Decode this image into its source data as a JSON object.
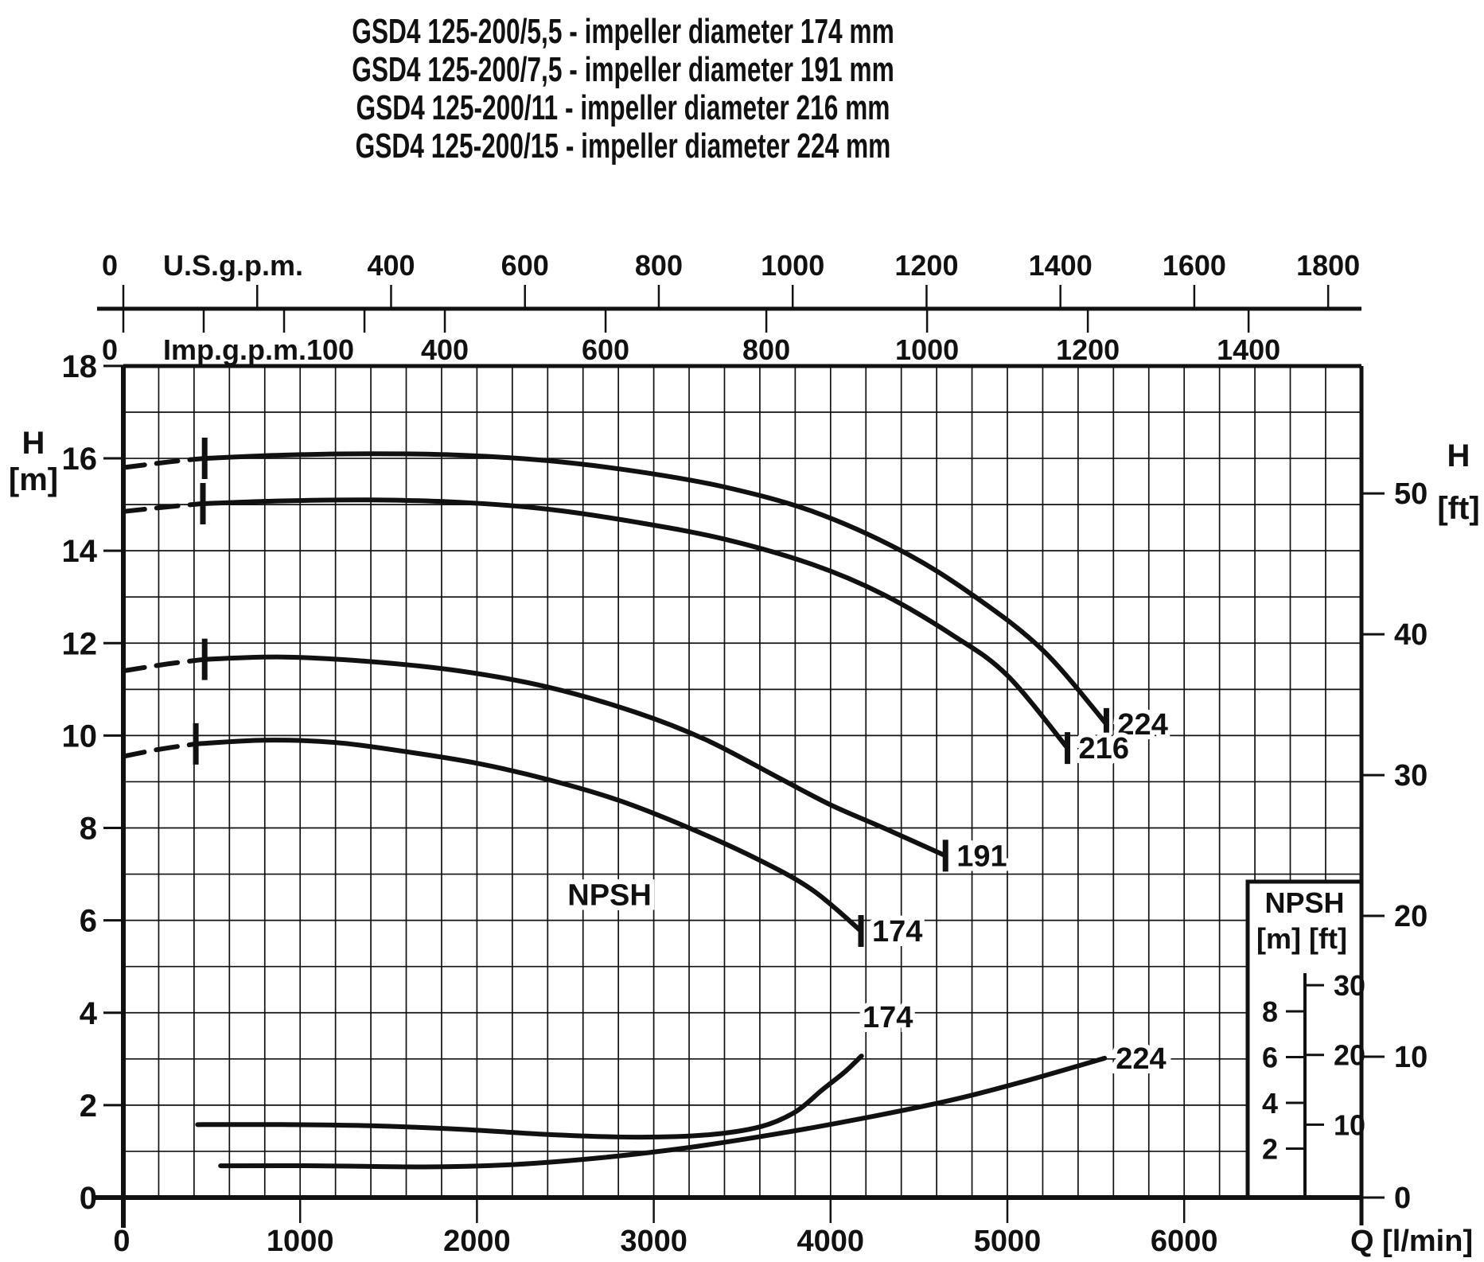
{
  "title": {
    "lines": [
      "GSD4 125-200/5,5 - impeller diameter 174 mm",
      "GSD4 125-200/7,5 - impeller diameter 191 mm",
      "GSD4 125-200/11 - impeller diameter 216 mm",
      "GSD4 125-200/15 - impeller diameter 224 mm"
    ]
  },
  "colors": {
    "ink": "#111111",
    "background": "#ffffff"
  },
  "chart_data": {
    "type": "line",
    "title": "GSD4 125-200 pump performance curves",
    "axes": {
      "bottom": {
        "label": "Q [l/min]",
        "tick_labels": [
          0,
          1000,
          2000,
          3000,
          4000,
          5000,
          6000
        ],
        "minor_step": 200,
        "range": [
          0,
          7000
        ]
      },
      "top_us": {
        "label": "U.S.g.p.m.",
        "zero_label": "0",
        "tick_labels": [
          400,
          600,
          800,
          1000,
          1200,
          1400,
          1600,
          1800
        ],
        "tick_marks": [
          0,
          200,
          400,
          600,
          800,
          1000,
          1200,
          1400,
          1600,
          1800
        ]
      },
      "top_imp": {
        "label": "Imp.g.p.m.100",
        "zero_label": "0",
        "tick_labels": [
          400,
          600,
          800,
          1000,
          1200,
          1400
        ],
        "tick_marks": [
          0,
          100,
          200,
          300,
          400,
          600,
          800,
          1000,
          1200,
          1400
        ]
      },
      "left": {
        "label_1": "H",
        "label_2": "[m]",
        "tick_labels": [
          0,
          2,
          4,
          6,
          8,
          10,
          12,
          14,
          16,
          18
        ],
        "minor_step": 1,
        "range": [
          0,
          18
        ]
      },
      "right": {
        "label_1": "H",
        "label_2": "[ft]",
        "tick_labels": [
          0,
          10,
          20,
          30,
          40,
          50
        ]
      }
    },
    "head_curves": [
      {
        "label": "224",
        "min_flow_q": 460,
        "points": [
          [
            0,
            15.8
          ],
          [
            250,
            15.92
          ],
          [
            460,
            16.0
          ],
          [
            900,
            16.07
          ],
          [
            1400,
            16.1
          ],
          [
            1900,
            16.07
          ],
          [
            2400,
            15.95
          ],
          [
            2900,
            15.72
          ],
          [
            3400,
            15.38
          ],
          [
            3900,
            14.85
          ],
          [
            4400,
            14.0
          ],
          [
            4800,
            13.05
          ],
          [
            5200,
            11.85
          ],
          [
            5560,
            10.25
          ]
        ]
      },
      {
        "label": "216",
        "min_flow_q": 450,
        "points": [
          [
            0,
            14.85
          ],
          [
            250,
            14.95
          ],
          [
            450,
            15.02
          ],
          [
            900,
            15.08
          ],
          [
            1400,
            15.1
          ],
          [
            1900,
            15.05
          ],
          [
            2400,
            14.9
          ],
          [
            2900,
            14.62
          ],
          [
            3400,
            14.25
          ],
          [
            3900,
            13.7
          ],
          [
            4300,
            13.05
          ],
          [
            4700,
            12.15
          ],
          [
            5000,
            11.3
          ],
          [
            5340,
            9.73
          ]
        ]
      },
      {
        "label": "191",
        "min_flow_q": 460,
        "points": [
          [
            0,
            11.4
          ],
          [
            250,
            11.55
          ],
          [
            460,
            11.65
          ],
          [
            900,
            11.7
          ],
          [
            1400,
            11.6
          ],
          [
            1900,
            11.4
          ],
          [
            2400,
            11.05
          ],
          [
            2900,
            10.5
          ],
          [
            3300,
            9.9
          ],
          [
            3700,
            9.1
          ],
          [
            4000,
            8.5
          ],
          [
            4300,
            8.0
          ],
          [
            4650,
            7.4
          ]
        ]
      },
      {
        "label": "174",
        "min_flow_q": 410,
        "points": [
          [
            0,
            9.55
          ],
          [
            200,
            9.7
          ],
          [
            410,
            9.82
          ],
          [
            800,
            9.9
          ],
          [
            1200,
            9.85
          ],
          [
            1600,
            9.65
          ],
          [
            2000,
            9.4
          ],
          [
            2400,
            9.05
          ],
          [
            2800,
            8.6
          ],
          [
            3200,
            8.0
          ],
          [
            3600,
            7.3
          ],
          [
            3900,
            6.65
          ],
          [
            4172,
            5.77
          ]
        ]
      }
    ],
    "npsh_curves": [
      {
        "label": "174",
        "label_pos": "above-end",
        "points": [
          [
            420,
            3.05
          ],
          [
            900,
            3.05
          ],
          [
            1400,
            3.0
          ],
          [
            1900,
            2.85
          ],
          [
            2400,
            2.62
          ],
          [
            2900,
            2.5
          ],
          [
            3300,
            2.6
          ],
          [
            3600,
            2.95
          ],
          [
            3800,
            3.6
          ],
          [
            3950,
            4.55
          ],
          [
            4080,
            5.35
          ],
          [
            4175,
            6.05
          ]
        ]
      },
      {
        "label": "224",
        "label_pos": "right",
        "points": [
          [
            550,
            1.25
          ],
          [
            1100,
            1.25
          ],
          [
            1700,
            1.2
          ],
          [
            2200,
            1.3
          ],
          [
            2700,
            1.6
          ],
          [
            3200,
            2.05
          ],
          [
            3700,
            2.65
          ],
          [
            4200,
            3.35
          ],
          [
            4700,
            4.15
          ],
          [
            5100,
            4.95
          ],
          [
            5550,
            5.95
          ]
        ]
      }
    ],
    "npsh_text_label": {
      "text": "NPSH",
      "q": 2750,
      "h_m": 6.55
    },
    "npsh_legend": {
      "title": "NPSH",
      "unit_m": "[m]",
      "unit_ft": "[ft]",
      "m_ticks": [
        2,
        4,
        6,
        8
      ],
      "ft_ticks": [
        10,
        20,
        30
      ]
    }
  }
}
